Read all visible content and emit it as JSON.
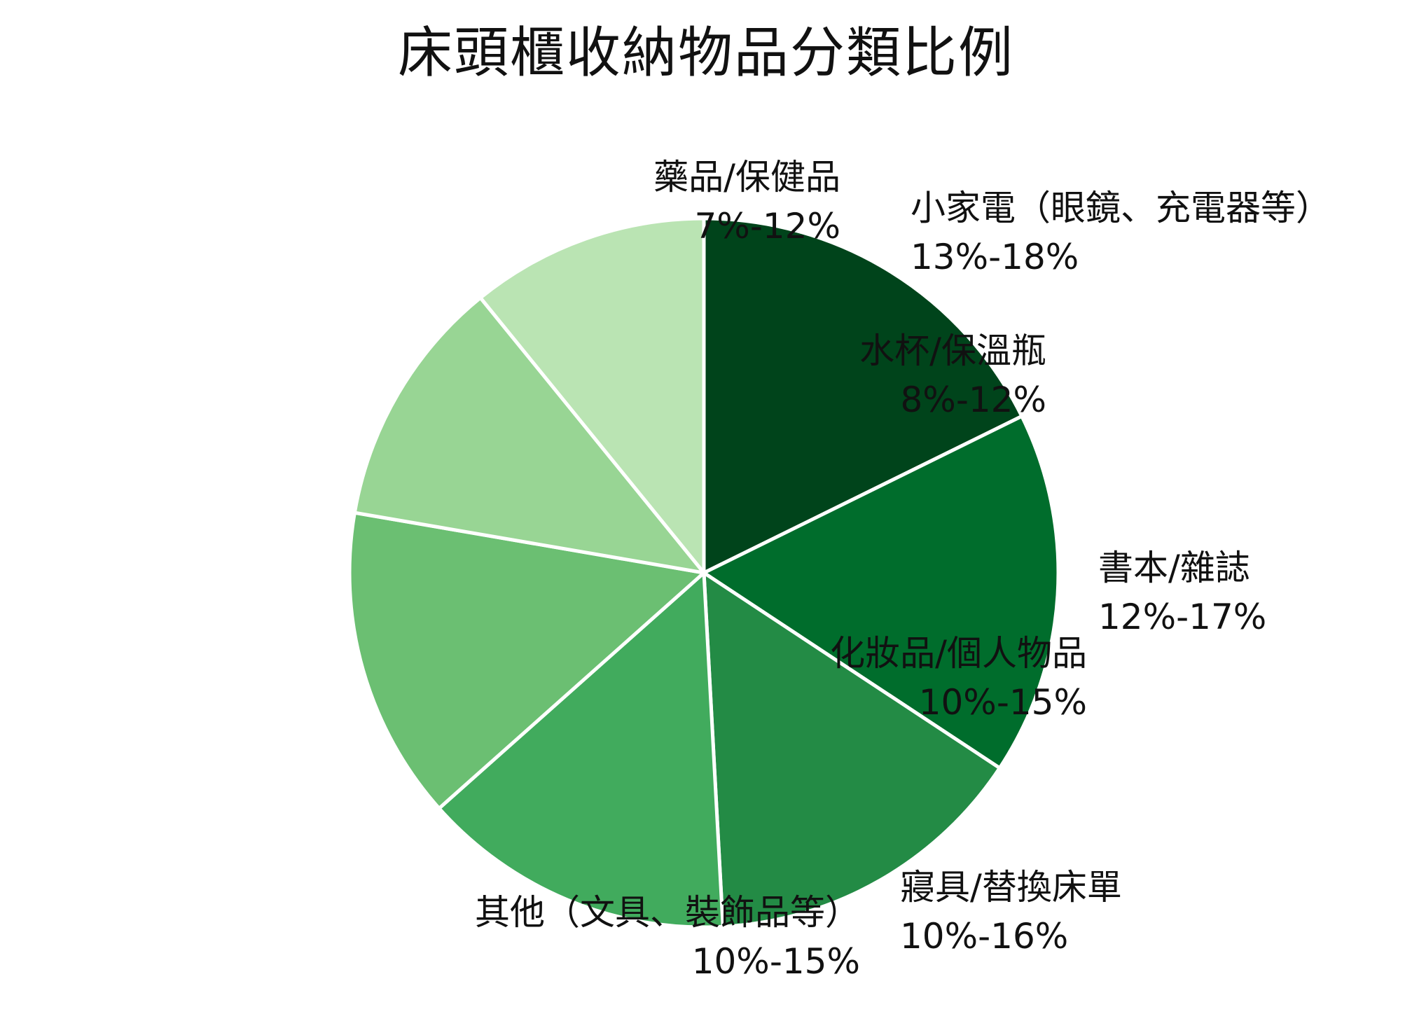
{
  "chart_data": {
    "type": "pie",
    "title": "床頭櫃收納物品分類比例",
    "slices": [
      {
        "label": "小家電（眼鏡、充電器等）",
        "range": "13%-18%",
        "value": 15.5,
        "color": "#00441b"
      },
      {
        "label": "書本/雜誌",
        "range": "12%-17%",
        "value": 14.5,
        "color": "#006d2c"
      },
      {
        "label": "寢具/替換床單",
        "range": "10%-16%",
        "value": 13.0,
        "color": "#238b45"
      },
      {
        "label": "其他（文具、裝飾品等）",
        "range": "10%-15%",
        "value": 12.5,
        "color": "#41ab5d"
      },
      {
        "label": "化妝品/個人物品",
        "range": "10%-15%",
        "value": 12.5,
        "color": "#6bbf72"
      },
      {
        "label": "水杯/保溫瓶",
        "range": "8%-12%",
        "value": 10.0,
        "color": "#98d594"
      },
      {
        "label": "藥品/保健品",
        "range": "7%-12%",
        "value": 9.5,
        "color": "#bae4b3"
      }
    ],
    "start_angle": "12 o'clock",
    "direction": "clockwise",
    "slice_border_color": "#ffffff",
    "legend": "none"
  }
}
